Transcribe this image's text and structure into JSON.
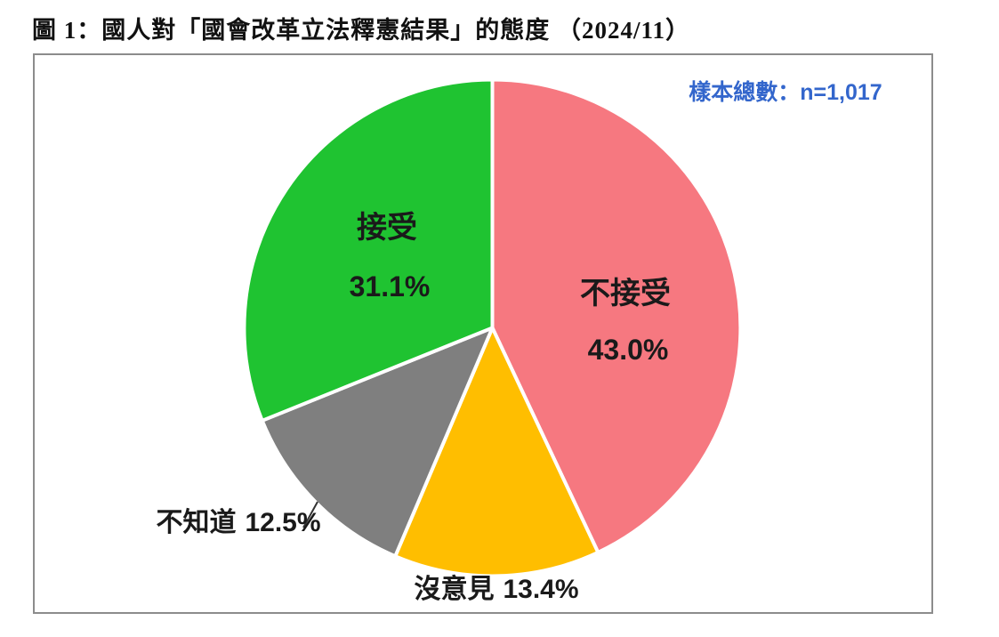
{
  "page": {
    "title": "圖 1：國人對「國會改革立法釋憲結果」的態度 （2024/11）",
    "sample_note": "樣本總數：n=1,017"
  },
  "colors": {
    "not_accept": "#F67880",
    "no_opinion": "#FFBE00",
    "dont_know": "#7F7F7F",
    "accept": "#1FC331",
    "slice_divider": "#FFFFFF",
    "sample_note_text": "#3366CC",
    "label_text": "#1A1A1A",
    "panel_border": "#8C8C8C"
  },
  "chart_data": {
    "type": "pie",
    "title": "圖 1：國人對「國會改革立法釋憲結果」的態度 （2024/11）",
    "sample_size_label": "樣本總數：n=1,017",
    "start_angle_deg": 0,
    "direction": "clockwise",
    "legend_position": "none",
    "slices": [
      {
        "key": "not-accept",
        "label": "不接受",
        "value": 43.0,
        "display": "43.0%",
        "color": "#F67880",
        "label_position": "inside"
      },
      {
        "key": "no-opinion",
        "label": "沒意見",
        "value": 13.4,
        "display": "13.4%",
        "color": "#FFBE00",
        "label_position": "outside-bottom"
      },
      {
        "key": "dont-know",
        "label": "不知道",
        "value": 12.5,
        "display": "12.5%",
        "color": "#7F7F7F",
        "label_position": "outside-left-with-leader-line"
      },
      {
        "key": "accept",
        "label": "接受",
        "value": 31.1,
        "display": "31.1%",
        "color": "#1FC331",
        "label_position": "inside"
      }
    ]
  }
}
